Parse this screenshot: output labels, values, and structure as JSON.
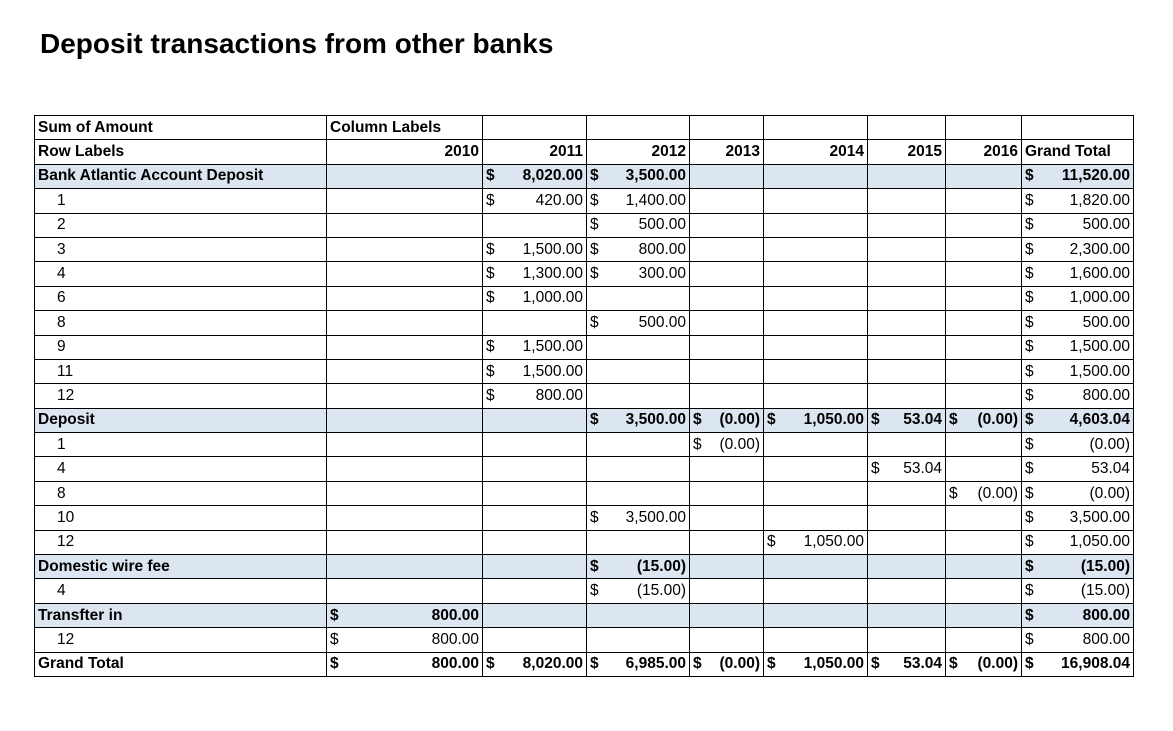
{
  "title": "Deposit transactions from other banks",
  "pivot": {
    "corner_label": "Sum of Amount",
    "column_labels_caption": "Column Labels",
    "row_labels_caption": "Row Labels",
    "years": [
      "2010",
      "2011",
      "2012",
      "2013",
      "2014",
      "2015",
      "2016"
    ],
    "grand_total_caption": "Grand Total",
    "groups": [
      {
        "label": "Bank Atlantic Account Deposit",
        "cells": [
          "",
          "8,020.00",
          "3,500.00",
          "",
          "",
          "",
          "",
          "11,520.00"
        ],
        "rows": [
          {
            "label": "1",
            "cells": [
              "",
              "420.00",
              "1,400.00",
              "",
              "",
              "",
              "",
              "1,820.00"
            ]
          },
          {
            "label": "2",
            "cells": [
              "",
              "",
              "500.00",
              "",
              "",
              "",
              "",
              "500.00"
            ]
          },
          {
            "label": "3",
            "cells": [
              "",
              "1,500.00",
              "800.00",
              "",
              "",
              "",
              "",
              "2,300.00"
            ]
          },
          {
            "label": "4",
            "cells": [
              "",
              "1,300.00",
              "300.00",
              "",
              "",
              "",
              "",
              "1,600.00"
            ]
          },
          {
            "label": "6",
            "cells": [
              "",
              "1,000.00",
              "",
              "",
              "",
              "",
              "",
              "1,000.00"
            ]
          },
          {
            "label": "8",
            "cells": [
              "",
              "",
              "500.00",
              "",
              "",
              "",
              "",
              "500.00"
            ]
          },
          {
            "label": "9",
            "cells": [
              "",
              "1,500.00",
              "",
              "",
              "",
              "",
              "",
              "1,500.00"
            ]
          },
          {
            "label": "11",
            "cells": [
              "",
              "1,500.00",
              "",
              "",
              "",
              "",
              "",
              "1,500.00"
            ]
          },
          {
            "label": "12",
            "cells": [
              "",
              "800.00",
              "",
              "",
              "",
              "",
              "",
              "800.00"
            ]
          }
        ]
      },
      {
        "label": "Deposit",
        "cells": [
          "",
          "",
          "3,500.00",
          "(0.00)",
          "1,050.00",
          "53.04",
          "(0.00)",
          "4,603.04"
        ],
        "rows": [
          {
            "label": "1",
            "cells": [
              "",
              "",
              "",
              "(0.00)",
              "",
              "",
              "",
              "(0.00)"
            ]
          },
          {
            "label": "4",
            "cells": [
              "",
              "",
              "",
              "",
              "",
              "53.04",
              "",
              "53.04"
            ]
          },
          {
            "label": "8",
            "cells": [
              "",
              "",
              "",
              "",
              "",
              "",
              "(0.00)",
              "(0.00)"
            ]
          },
          {
            "label": "10",
            "cells": [
              "",
              "",
              "3,500.00",
              "",
              "",
              "",
              "",
              "3,500.00"
            ]
          },
          {
            "label": "12",
            "cells": [
              "",
              "",
              "",
              "",
              "1,050.00",
              "",
              "",
              "1,050.00"
            ]
          }
        ]
      },
      {
        "label": "Domestic wire fee",
        "cells": [
          "",
          "",
          "(15.00)",
          "",
          "",
          "",
          "",
          "(15.00)"
        ],
        "rows": [
          {
            "label": "4",
            "cells": [
              "",
              "",
              "(15.00)",
              "",
              "",
              "",
              "",
              "(15.00)"
            ]
          }
        ]
      },
      {
        "label": "Transfter in",
        "cells": [
          "800.00",
          "",
          "",
          "",
          "",
          "",
          "",
          "800.00"
        ],
        "rows": [
          {
            "label": "12",
            "cells": [
              "800.00",
              "",
              "",
              "",
              "",
              "",
              "",
              "800.00"
            ]
          }
        ]
      }
    ],
    "grand_total": {
      "label": "Grand Total",
      "cells": [
        "800.00",
        "8,020.00",
        "6,985.00",
        "(0.00)",
        "1,050.00",
        "53.04",
        "(0.00)",
        "16,908.04"
      ]
    },
    "currency_symbol": "$",
    "band_color": "#dce6f1"
  }
}
